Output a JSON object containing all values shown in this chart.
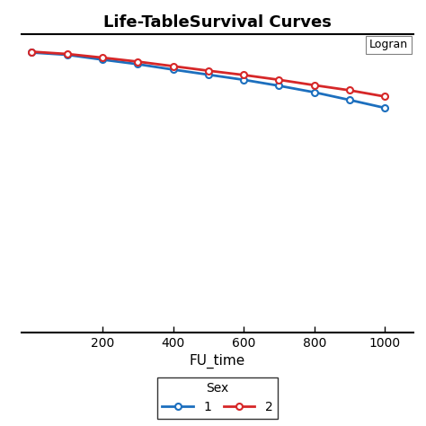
{
  "title": "Life-TableSurvival Curves",
  "xlabel": "FU_time",
  "xlim": [
    -30,
    1080
  ],
  "ylim": [
    0.0,
    1.05
  ],
  "xticks": [
    200,
    400,
    600,
    800,
    1000
  ],
  "background_color": "#ffffff",
  "annotation_text": "Logran",
  "legend_prefix": "Sex",
  "series": [
    {
      "label": "1",
      "color": "#1c6fbe",
      "x": [
        0,
        100,
        200,
        300,
        400,
        500,
        600,
        700,
        800,
        900,
        1000
      ],
      "y": [
        0.985,
        0.977,
        0.96,
        0.944,
        0.925,
        0.907,
        0.889,
        0.868,
        0.845,
        0.818,
        0.79
      ]
    },
    {
      "label": "2",
      "color": "#d62728",
      "x": [
        0,
        100,
        200,
        300,
        400,
        500,
        600,
        700,
        800,
        900,
        1000
      ],
      "y": [
        0.988,
        0.98,
        0.967,
        0.953,
        0.937,
        0.921,
        0.906,
        0.889,
        0.87,
        0.852,
        0.83
      ]
    }
  ]
}
